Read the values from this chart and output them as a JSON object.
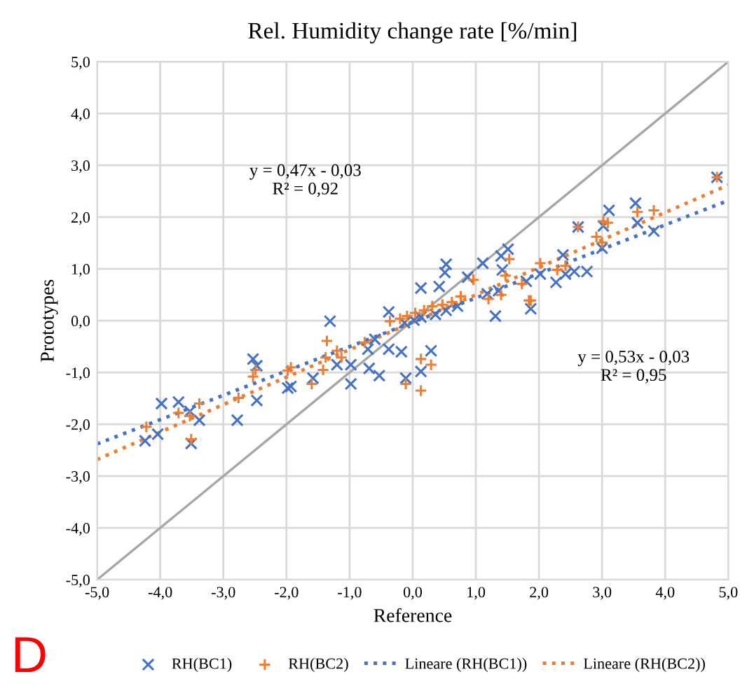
{
  "chart_data": {
    "type": "scatter",
    "title": "Rel. Humidity change rate [%/min]",
    "xlabel": "Reference",
    "ylabel": "Prototypes",
    "xlim": [
      -5,
      5
    ],
    "ylim": [
      -5,
      5
    ],
    "xticks": [
      {
        "value": -5,
        "label": "-5,0"
      },
      {
        "value": -4,
        "label": "-4,0"
      },
      {
        "value": -3,
        "label": "-3,0"
      },
      {
        "value": -2,
        "label": "-2,0"
      },
      {
        "value": -1,
        "label": "-1,0"
      },
      {
        "value": 0,
        "label": "0,0"
      },
      {
        "value": 1,
        "label": "1,0"
      },
      {
        "value": 2,
        "label": "2,0"
      },
      {
        "value": 3,
        "label": "3,0"
      },
      {
        "value": 4,
        "label": "4,0"
      },
      {
        "value": 5,
        "label": "5,0"
      }
    ],
    "yticks": [
      {
        "value": -5,
        "label": "-5,0"
      },
      {
        "value": -4,
        "label": "-4,0"
      },
      {
        "value": -3,
        "label": "-3,0"
      },
      {
        "value": -2,
        "label": "-2,0"
      },
      {
        "value": -1,
        "label": "-1,0"
      },
      {
        "value": 0,
        "label": "0,0"
      },
      {
        "value": 1,
        "label": "1,0"
      },
      {
        "value": 2,
        "label": "2,0"
      },
      {
        "value": 3,
        "label": "3,0"
      },
      {
        "value": 4,
        "label": "4,0"
      },
      {
        "value": 5,
        "label": "5,0"
      }
    ],
    "grid": true,
    "legend": "bottom",
    "series": [
      {
        "type": "line",
        "color": "#a6a6a6",
        "line_style": "solid",
        "marker": "none",
        "x": [
          -5,
          5
        ],
        "values": [
          -5,
          5
        ]
      },
      {
        "name": "RH(BC1)",
        "marker": "x",
        "color": "#4472c4",
        "x": [
          4.82,
          3.11,
          3.53,
          3.56,
          3.82,
          2.62,
          3.02,
          3.0,
          2.38,
          2.02,
          2.27,
          2.42,
          2.56,
          2.76,
          1.87,
          1.8,
          1.51,
          1.4,
          1.11,
          0.53,
          0.51,
          0.13,
          0.42,
          0.87,
          1.42,
          1.36,
          1.31,
          1.18,
          -0.13,
          0.02,
          0.13,
          0.36,
          0.53,
          0.71,
          -0.38,
          -1.31,
          0.29,
          0.13,
          -0.11,
          -0.18,
          -0.38,
          -0.53,
          -0.69,
          -0.98,
          -0.98,
          -1.2,
          -0.6,
          -0.71,
          -1.58,
          -1.98,
          -2.53,
          -2.47,
          -2.47,
          -1.93,
          -3.98,
          -3.71,
          -3.53,
          -3.38,
          -2.78,
          -3.51,
          -4.24,
          -4.04
        ],
        "values": [
          2.77,
          2.13,
          2.27,
          1.89,
          1.73,
          1.81,
          1.83,
          1.4,
          1.27,
          0.9,
          0.74,
          0.9,
          0.95,
          0.95,
          0.23,
          0.76,
          1.38,
          1.25,
          1.11,
          1.09,
          0.93,
          0.63,
          0.66,
          0.84,
          0.98,
          0.58,
          0.09,
          0.52,
          -0.04,
          0.01,
          0.07,
          0.12,
          0.2,
          0.28,
          0.17,
          -0.01,
          -0.58,
          -0.98,
          -1.11,
          -0.6,
          -0.55,
          -1.06,
          -0.92,
          -0.85,
          -1.22,
          -0.85,
          -0.36,
          -0.55,
          -1.11,
          -1.3,
          -0.74,
          -0.87,
          -1.54,
          -1.27,
          -1.6,
          -1.57,
          -1.75,
          -1.92,
          -1.92,
          -2.37,
          -2.32,
          -2.19
        ]
      },
      {
        "name": "RH(BC2)",
        "marker": "cross",
        "color": "#ed7d31",
        "x": [
          4.82,
          3.56,
          3.82,
          2.62,
          3.02,
          3.09,
          2.91,
          3.0,
          2.02,
          2.29,
          2.42,
          1.87,
          1.73,
          1.53,
          0.96,
          1.47,
          1.84,
          1.4,
          1.2,
          -0.2,
          -0.09,
          0.04,
          0.18,
          0.31,
          0.47,
          0.62,
          0.76,
          -1.36,
          -0.36,
          0.29,
          0.13,
          -0.11,
          0.13,
          -0.76,
          -1.2,
          -1.38,
          -1.13,
          -1.6,
          -1.93,
          -1.42,
          -2.53,
          -1.98,
          -3.38,
          -3.53,
          -3.51,
          -4.22,
          -3.71,
          -2.76,
          -2.49
        ],
        "values": [
          2.77,
          2.1,
          2.13,
          1.81,
          1.92,
          1.89,
          1.62,
          1.51,
          1.11,
          0.98,
          1.06,
          0.39,
          0.71,
          1.19,
          0.79,
          0.87,
          0.39,
          0.5,
          0.42,
          0.04,
          0.09,
          0.15,
          0.2,
          0.28,
          0.31,
          0.36,
          0.47,
          -0.39,
          -0.01,
          -0.85,
          -0.74,
          -1.22,
          -1.35,
          -0.42,
          -0.58,
          -0.71,
          -0.71,
          -1.22,
          -0.9,
          -0.95,
          -1.08,
          -0.96,
          -1.6,
          -1.84,
          -2.29,
          -2.05,
          -1.78,
          -1.49,
          -0.95
        ]
      },
      {
        "name": "Lineare (RH(BC1))",
        "type": "line",
        "color": "#4472c4",
        "line_style": "dotted",
        "marker": "none",
        "x": [
          -5,
          5
        ],
        "values": [
          -2.38,
          2.32
        ]
      },
      {
        "name": "Lineare (RH(BC2))",
        "type": "line",
        "color": "#ed7d31",
        "line_style": "dotted",
        "marker": "none",
        "x": [
          -5,
          5
        ],
        "values": [
          -2.68,
          2.62
        ]
      }
    ],
    "annotations": [
      "y = 0,47x - 0,03\nR² = 0,92",
      "y = 0,53x - 0,03\nR² = 0,95",
      "D"
    ]
  }
}
